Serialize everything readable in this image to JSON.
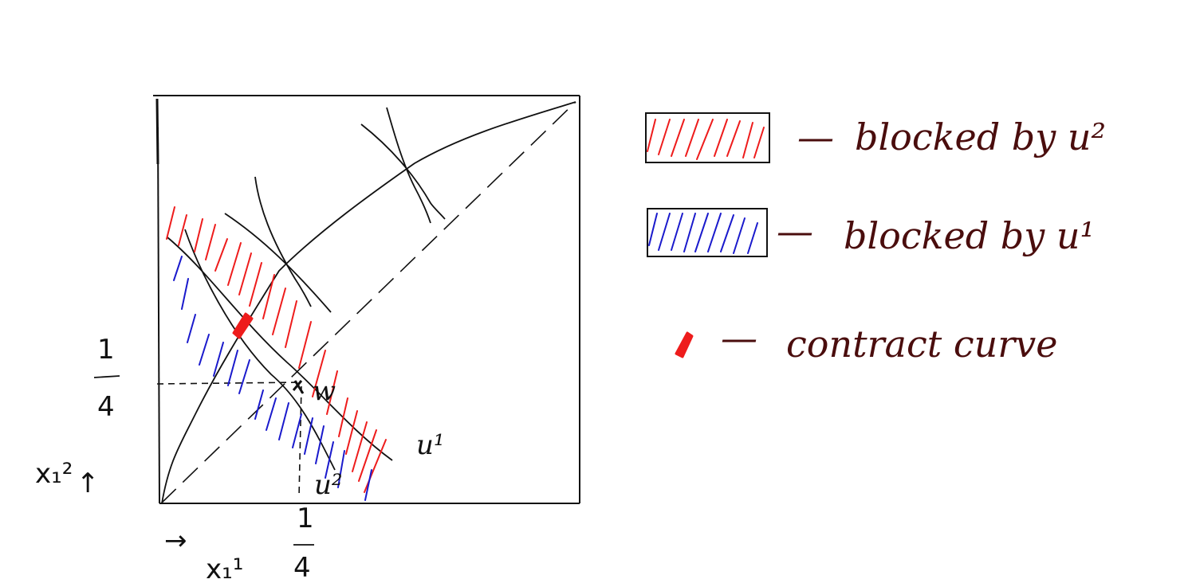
{
  "diagram": {
    "curve_labels": {
      "u1": "u¹",
      "u2": "u²",
      "w": "w"
    },
    "axis": {
      "x_var": "x₁¹",
      "y_var": "x₁²",
      "x_tick_num": "1",
      "x_tick_den": "4",
      "y_tick_num": "1",
      "y_tick_den": "4",
      "x_arrow": "→",
      "y_arrow": "↑"
    },
    "legend": {
      "items": [
        {
          "label": "blocked by u²",
          "swatch": "red-hatch"
        },
        {
          "label": "blocked by u¹",
          "swatch": "blue-hatch"
        },
        {
          "label": "contract curve",
          "swatch": "red-mark"
        }
      ],
      "dash": "—"
    },
    "colors": {
      "ink": "#111111",
      "red": "#ee1c1c",
      "blue": "#1a1acc",
      "legend_text": "#4a0d0d"
    }
  }
}
